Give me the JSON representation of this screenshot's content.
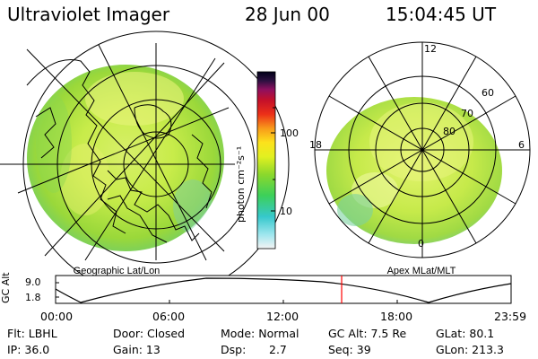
{
  "header": {
    "instrument": "Ultraviolet Imager",
    "date": "28 Jun 00",
    "time": "15:04:45 UT"
  },
  "colorbar": {
    "label": "photon cm⁻²s⁻¹",
    "ticks": [
      "100",
      "10"
    ]
  },
  "geo_map": {
    "caption": "Geographic Lat/Lon"
  },
  "polar_plot": {
    "caption": "Apex MLat/MLT",
    "mlt_labels": {
      "top": "12",
      "left": "18",
      "right": "6",
      "bottom": "0"
    },
    "lat_labels": [
      "60",
      "70",
      "80"
    ]
  },
  "altitude_plot": {
    "y_label": "GC Alt",
    "y_ticks": [
      "9.0",
      "1.8"
    ],
    "x_ticks": [
      "00:00",
      "06:00",
      "12:00",
      "18:00",
      "23:59"
    ],
    "current_time_fraction": 0.628,
    "marker_color": "#ff0000"
  },
  "info_panel": {
    "row1": [
      "Flt: LBHL",
      "Door: Closed",
      "Mode: Normal",
      "GC Alt: 7.5 Re",
      "GLat: 80.1"
    ],
    "row2": [
      "IP: 36.0",
      "Gain: 13",
      "Dsp:",
      "2.7",
      "Seq: 39",
      "GLon: 213.3"
    ]
  }
}
